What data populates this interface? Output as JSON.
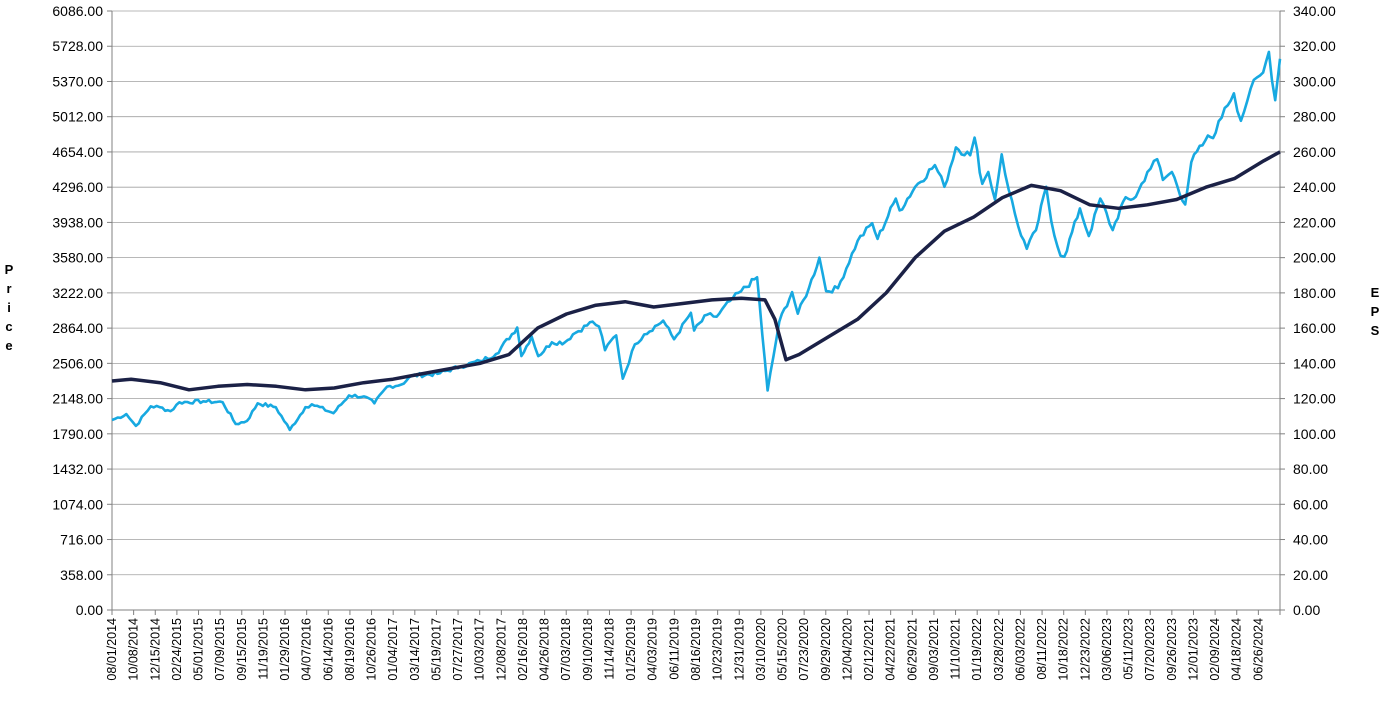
{
  "chart_data": {
    "type": "line",
    "ylabel": "Price",
    "y2label": "EPS",
    "ylim": [
      0,
      6086
    ],
    "y2lim": [
      0,
      340
    ],
    "grid": true,
    "colors": {
      "price": "#17a9e1",
      "eps": "#1b2146",
      "grid": "#a0a0a0",
      "axis": "#808080"
    },
    "y_ticks": [
      "0.00",
      "358.00",
      "716.00",
      "1074.00",
      "1432.00",
      "1790.00",
      "2148.00",
      "2506.00",
      "2864.00",
      "3222.00",
      "3580.00",
      "3938.00",
      "4296.00",
      "4654.00",
      "5012.00",
      "5370.00",
      "5728.00",
      "6086.00"
    ],
    "y2_ticks": [
      "0.00",
      "20.00",
      "40.00",
      "60.00",
      "80.00",
      "100.00",
      "120.00",
      "140.00",
      "160.00",
      "180.00",
      "200.00",
      "220.00",
      "240.00",
      "260.00",
      "280.00",
      "300.00",
      "320.00",
      "340.00"
    ],
    "x_ticks": [
      "08/01/2014",
      "10/08/2014",
      "12/15/2014",
      "02/24/2015",
      "05/01/2015",
      "07/09/2015",
      "09/15/2015",
      "11/19/2015",
      "01/29/2016",
      "04/07/2016",
      "06/14/2016",
      "08/19/2016",
      "10/26/2016",
      "01/04/2017",
      "03/14/2017",
      "05/19/2017",
      "07/27/2017",
      "10/03/2017",
      "12/08/2017",
      "02/16/2018",
      "04/26/2018",
      "07/03/2018",
      "09/10/2018",
      "11/14/2018",
      "01/25/2019",
      "04/03/2019",
      "06/11/2019",
      "08/16/2019",
      "10/23/2019",
      "12/31/2019",
      "03/10/2020",
      "05/15/2020",
      "07/23/2020",
      "09/29/2020",
      "12/04/2020",
      "02/12/2021",
      "04/22/2021",
      "06/29/2021",
      "09/03/2021",
      "11/10/2021",
      "01/19/2022",
      "03/28/2022",
      "06/03/2022",
      "08/11/2022",
      "10/18/2022",
      "12/23/2022",
      "03/06/2023",
      "05/11/2023",
      "07/20/2023",
      "09/26/2023",
      "12/01/2023",
      "02/09/2024",
      "04/18/2024",
      "06/26/2024"
    ],
    "series": [
      {
        "axis": "left",
        "color": "#17a9e1",
        "x": [
          "2014-08-01",
          "2014-09-15",
          "2014-10-15",
          "2014-12-01",
          "2014-12-29",
          "2015-02-01",
          "2015-03-01",
          "2015-05-15",
          "2015-07-15",
          "2015-08-25",
          "2015-09-29",
          "2015-11-02",
          "2015-12-29",
          "2016-02-11",
          "2016-03-31",
          "2016-04-20",
          "2016-06-27",
          "2016-08-15",
          "2016-10-01",
          "2016-11-03",
          "2016-12-13",
          "2017-01-26",
          "2017-03-01",
          "2017-05-20",
          "2017-08-01",
          "2017-10-02",
          "2017-11-20",
          "2018-01-26",
          "2018-02-08",
          "2018-03-12",
          "2018-04-02",
          "2018-05-15",
          "2018-06-25",
          "2018-07-20",
          "2018-09-20",
          "2018-10-10",
          "2018-10-29",
          "2018-11-15",
          "2018-12-03",
          "2018-12-24",
          "2019-01-31",
          "2019-03-01",
          "2019-04-30",
          "2019-06-03",
          "2019-07-26",
          "2019-08-05",
          "2019-09-15",
          "2019-10-15",
          "2019-11-26",
          "2019-12-31",
          "2020-02-19",
          "2020-03-23",
          "2020-04-29",
          "2020-06-08",
          "2020-06-26",
          "2020-07-31",
          "2020-09-02",
          "2020-09-23",
          "2020-10-30",
          "2020-12-31",
          "2021-02-15",
          "2021-03-04",
          "2021-04-30",
          "2021-05-12",
          "2021-06-30",
          "2021-08-31",
          "2021-09-30",
          "2021-11-05",
          "2021-12-20",
          "2022-01-03",
          "2022-01-27",
          "2022-02-15",
          "2022-03-08",
          "2022-03-29",
          "2022-04-20",
          "2022-05-20",
          "2022-06-16",
          "2022-07-15",
          "2022-08-16",
          "2022-09-01",
          "2022-09-30",
          "2022-10-12",
          "2022-11-30",
          "2022-12-28",
          "2023-02-02",
          "2023-03-13",
          "2023-04-15",
          "2023-05-25",
          "2023-06-30",
          "2023-07-31",
          "2023-08-18",
          "2023-09-15",
          "2023-10-27",
          "2023-11-15",
          "2023-12-29",
          "2024-01-31",
          "2024-02-28",
          "2024-03-28",
          "2024-04-19",
          "2024-05-20",
          "2024-06-28",
          "2024-07-16",
          "2024-08-05",
          "2024-08-20"
        ],
        "values": [
          1930,
          1990,
          1870,
          2070,
          2060,
          2020,
          2110,
          2120,
          2110,
          1890,
          1920,
          2100,
          2060,
          1830,
          2060,
          2090,
          2000,
          2180,
          2170,
          2100,
          2270,
          2290,
          2380,
          2400,
          2475,
          2530,
          2600,
          2870,
          2580,
          2780,
          2580,
          2720,
          2720,
          2800,
          2930,
          2880,
          2640,
          2730,
          2790,
          2350,
          2700,
          2800,
          2940,
          2750,
          3020,
          2840,
          3000,
          2980,
          3140,
          3240,
          3380,
          2230,
          2930,
          3230,
          3010,
          3270,
          3580,
          3240,
          3270,
          3750,
          3930,
          3770,
          4180,
          4060,
          4300,
          4520,
          4300,
          4700,
          4620,
          4800,
          4330,
          4450,
          4170,
          4630,
          4270,
          3900,
          3670,
          3860,
          4300,
          3950,
          3600,
          3590,
          4080,
          3800,
          4180,
          3860,
          4150,
          4200,
          4450,
          4580,
          4370,
          4450,
          4120,
          4550,
          4770,
          4850,
          5100,
          5250,
          4970,
          5300,
          5460,
          5670,
          5180,
          5600
        ]
      },
      {
        "axis": "right",
        "color": "#1b2146",
        "x": [
          "2014-08-01",
          "2014-09-30",
          "2014-12-31",
          "2015-03-31",
          "2015-06-30",
          "2015-09-30",
          "2015-12-31",
          "2016-03-31",
          "2016-06-30",
          "2016-09-30",
          "2016-12-31",
          "2017-03-31",
          "2017-06-30",
          "2017-09-30",
          "2017-12-31",
          "2018-03-31",
          "2018-06-30",
          "2018-09-30",
          "2018-12-31",
          "2019-03-31",
          "2019-06-30",
          "2019-09-30",
          "2019-12-31",
          "2020-03-15",
          "2020-04-15",
          "2020-05-20",
          "2020-06-30",
          "2020-09-30",
          "2020-12-31",
          "2021-03-31",
          "2021-06-30",
          "2021-09-30",
          "2021-12-31",
          "2022-03-31",
          "2022-06-30",
          "2022-09-30",
          "2022-12-31",
          "2023-03-31",
          "2023-06-30",
          "2023-09-30",
          "2023-12-31",
          "2024-03-31",
          "2024-06-30",
          "2024-08-20"
        ],
        "values": [
          130,
          131,
          129,
          125,
          127,
          128,
          127,
          125,
          126,
          129,
          131,
          134,
          137,
          140,
          145,
          160,
          168,
          173,
          175,
          172,
          174,
          176,
          177,
          176,
          165,
          142,
          145,
          155,
          165,
          180,
          200,
          215,
          223,
          234,
          241,
          238,
          230,
          228,
          230,
          233,
          240,
          245,
          255,
          260
        ]
      }
    ]
  }
}
